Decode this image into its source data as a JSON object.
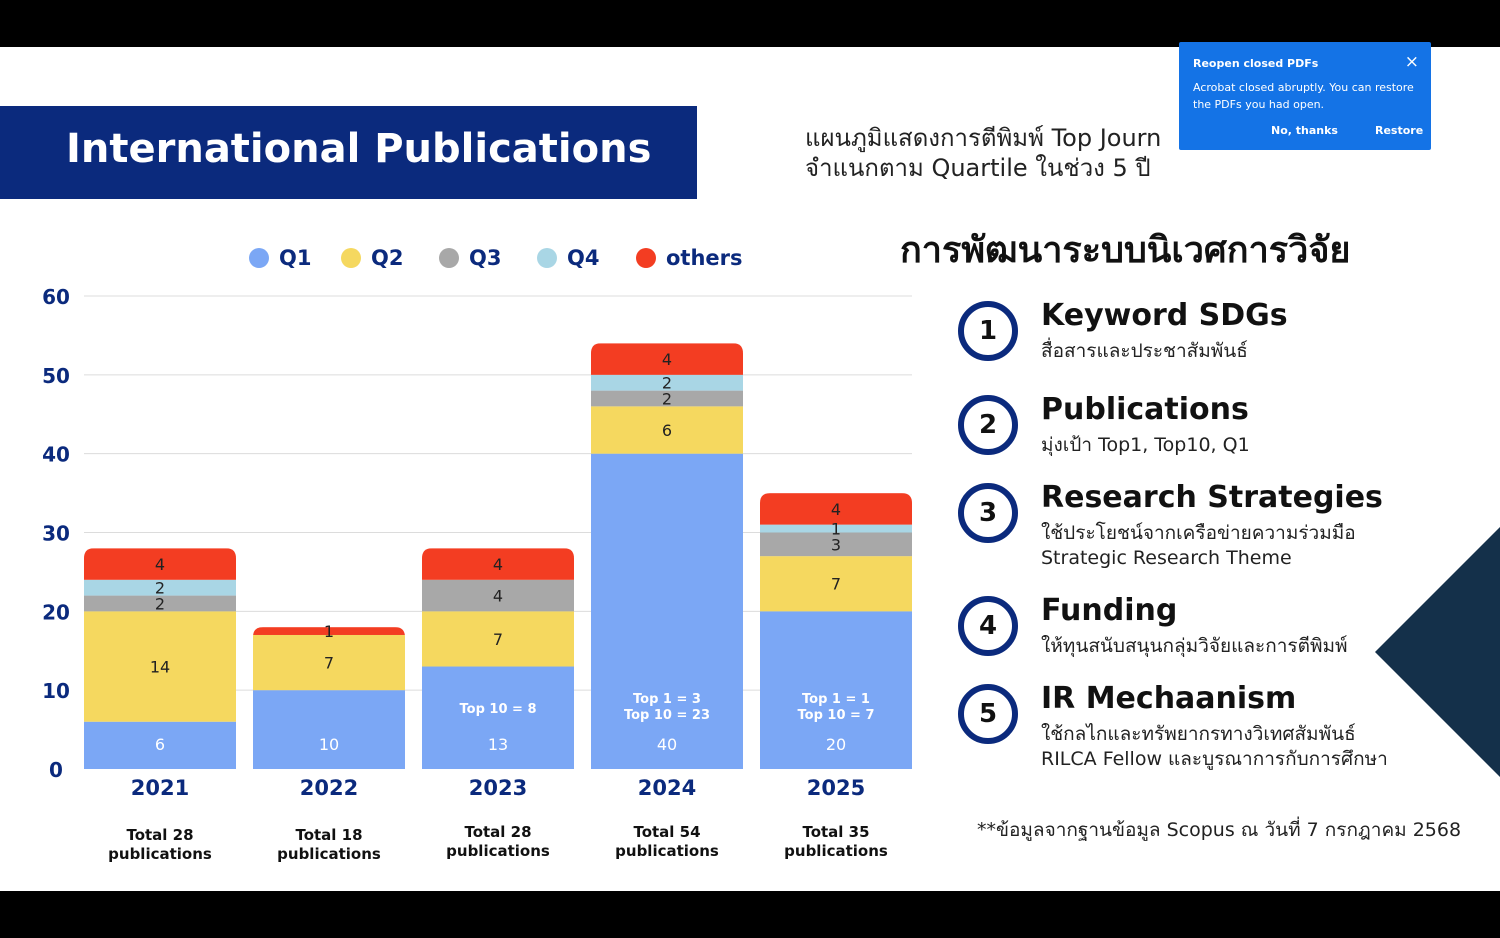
{
  "slide": {
    "title": "International Publications",
    "subtitle_line1": "แผนภูมิแสดงการตีพิมพ์ Top Journ",
    "subtitle_line2": "จำแนกตาม Quartile ในช่วง 5 ปี",
    "heading_th": "การพัฒนาระบบนิเวศการวิจัย",
    "footnote": "**ข้อมูลจากฐานข้อมูล Scopus ณ วันที่ 7 กรกฎาคม 2568",
    "items": [
      {
        "num": "1",
        "title": "Keyword SDGs",
        "desc1": "สื่อสารและประชาสัมพันธ์",
        "desc2": ""
      },
      {
        "num": "2",
        "title": "Publications",
        "desc1": "มุ่งเป้า Top1, Top10, Q1",
        "desc2": ""
      },
      {
        "num": "3",
        "title": "Research Strategies",
        "desc1": "ใช้ประโยชน์จากเครือข่ายความร่วมมือ",
        "desc2": "Strategic Research Theme"
      },
      {
        "num": "4",
        "title": "Funding",
        "desc1": "ให้ทุนสนับสนุนกลุ่มวิจัยและการตีพิมพ์",
        "desc2": ""
      },
      {
        "num": "5",
        "title": "IR Mechaanism",
        "desc1": "ใช้กลไกและทรัพยากรทางวิเทศสัมพันธ์",
        "desc2": "RILCA Fellow และบูรณาการกับการศึกษา"
      }
    ]
  },
  "toast": {
    "title": "Reopen closed PDFs",
    "close_icon": "×",
    "body": "Acrobat closed abruptly. You can restore the PDFs you had open.",
    "no_label": "No, thanks",
    "restore_label": "Restore"
  },
  "chart_data": {
    "type": "bar",
    "stacked": true,
    "categories": [
      "2021",
      "2022",
      "2023",
      "2024",
      "2025"
    ],
    "ylim": [
      0,
      60
    ],
    "yticks": [
      "0",
      "10",
      "20",
      "30",
      "40",
      "50",
      "60"
    ],
    "grid": true,
    "legend_position": "top",
    "series": [
      {
        "name": "Q1",
        "color": "#7ba7f5",
        "values": [
          6,
          10,
          13,
          40,
          20
        ]
      },
      {
        "name": "Q2",
        "color": "#f5d85f",
        "values": [
          14,
          7,
          7,
          6,
          7
        ]
      },
      {
        "name": "Q3",
        "color": "#a8a8a8",
        "values": [
          2,
          0,
          4,
          2,
          3
        ]
      },
      {
        "name": "Q4",
        "color": "#a9d6e5",
        "values": [
          2,
          0,
          0,
          2,
          1
        ]
      },
      {
        "name": "others",
        "color": "#f33d22",
        "values": [
          4,
          1,
          4,
          4,
          4
        ]
      }
    ],
    "top_labels": [
      [],
      [],
      [
        "Top 10 = 8"
      ],
      [
        "Top 1 = 3",
        "Top 10 = 23"
      ],
      [
        "Top 1 = 1",
        "Top 10 = 7"
      ]
    ],
    "totals": [
      [
        "Total 28",
        "publications"
      ],
      [
        "Total 18",
        "publications"
      ],
      [
        "Total 28",
        "publications"
      ],
      [
        "Total 54",
        "publications"
      ],
      [
        "Total 35",
        "publications"
      ]
    ]
  }
}
